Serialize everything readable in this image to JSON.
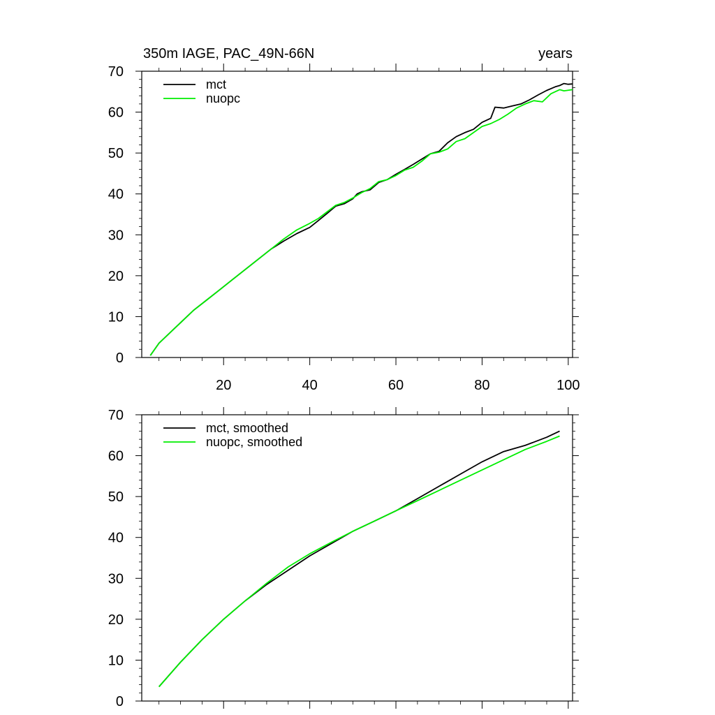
{
  "chart_data": [
    {
      "type": "line",
      "title": "350m IAGE, PAC_49N-66N",
      "subtitle_right": "years",
      "xlim": [
        1,
        101
      ],
      "ylim": [
        0,
        70
      ],
      "x_ticks": [
        20,
        40,
        60,
        80,
        100
      ],
      "y_ticks": [
        0,
        10,
        20,
        30,
        40,
        50,
        60,
        70
      ],
      "series": [
        {
          "name": "mct",
          "color": "#000000",
          "x": [
            3,
            5,
            8,
            10,
            13,
            16,
            19,
            22,
            25,
            28,
            31,
            34,
            37,
            40,
            42,
            44,
            46,
            48,
            50,
            51,
            52,
            54,
            56,
            58,
            60,
            62,
            64,
            66,
            68,
            70,
            72,
            74,
            76,
            78,
            80,
            82,
            83,
            85,
            87,
            89,
            91,
            93,
            95,
            97,
            98,
            99,
            100,
            101
          ],
          "y": [
            0.5,
            3.5,
            6.5,
            8.5,
            11.5,
            14,
            16.5,
            19,
            21.5,
            24,
            26.5,
            28.5,
            30.3,
            31.8,
            33.5,
            35.2,
            37.0,
            37.6,
            38.8,
            40.0,
            40.5,
            41.0,
            42.8,
            43.5,
            44.8,
            46.0,
            47.2,
            48.5,
            49.8,
            50.4,
            52.5,
            54.0,
            55.0,
            55.8,
            57.5,
            58.5,
            61.2,
            61.0,
            61.5,
            62.0,
            63.0,
            64.2,
            65.3,
            66.2,
            66.5,
            67.0,
            66.8,
            66.9
          ]
        },
        {
          "name": "nuopc",
          "color": "#00ee00",
          "x": [
            3,
            5,
            8,
            10,
            13,
            16,
            19,
            22,
            25,
            28,
            31,
            34,
            37,
            40,
            42,
            44,
            46,
            48,
            50,
            52,
            54,
            56,
            58,
            60,
            62,
            64,
            66,
            68,
            70,
            72,
            74,
            76,
            78,
            80,
            82,
            84,
            86,
            88,
            90,
            92,
            94,
            96,
            98,
            99,
            101
          ],
          "y": [
            0.5,
            3.5,
            6.5,
            8.5,
            11.5,
            14,
            16.5,
            19,
            21.5,
            24,
            26.5,
            29.0,
            31.2,
            32.8,
            34.0,
            35.6,
            37.2,
            37.9,
            39.0,
            40.3,
            41.3,
            43.0,
            43.5,
            44.5,
            45.8,
            46.5,
            48.0,
            49.8,
            50.2,
            51.0,
            52.8,
            53.5,
            55.0,
            56.5,
            57.2,
            58.2,
            59.5,
            61.0,
            62.0,
            62.8,
            62.5,
            64.5,
            65.5,
            65.2,
            65.5
          ]
        }
      ]
    },
    {
      "type": "line",
      "xlim": [
        1,
        101
      ],
      "ylim": [
        0,
        70
      ],
      "x_ticks": [
        20,
        40,
        60,
        80,
        100
      ],
      "y_ticks": [
        0,
        10,
        20,
        30,
        40,
        50,
        60,
        70
      ],
      "series": [
        {
          "name": "mct, smoothed",
          "color": "#000000",
          "x": [
            5,
            10,
            15,
            20,
            25,
            30,
            35,
            40,
            45,
            50,
            55,
            60,
            65,
            70,
            75,
            80,
            85,
            90,
            95,
            98
          ],
          "y": [
            3.5,
            9.5,
            15.0,
            20.0,
            24.5,
            28.5,
            32.0,
            35.5,
            38.5,
            41.5,
            44.0,
            46.5,
            49.5,
            52.5,
            55.5,
            58.5,
            61.0,
            62.5,
            64.5,
            66.0
          ]
        },
        {
          "name": "nuopc, smoothed",
          "color": "#00ee00",
          "x": [
            5,
            10,
            15,
            20,
            25,
            30,
            35,
            40,
            45,
            50,
            55,
            60,
            65,
            70,
            75,
            80,
            85,
            90,
            95,
            98
          ],
          "y": [
            3.5,
            9.5,
            15.0,
            20.0,
            24.5,
            28.8,
            32.8,
            36.0,
            38.8,
            41.5,
            44.0,
            46.5,
            49.0,
            51.5,
            54.0,
            56.5,
            59.0,
            61.5,
            63.5,
            64.8
          ]
        }
      ]
    }
  ]
}
